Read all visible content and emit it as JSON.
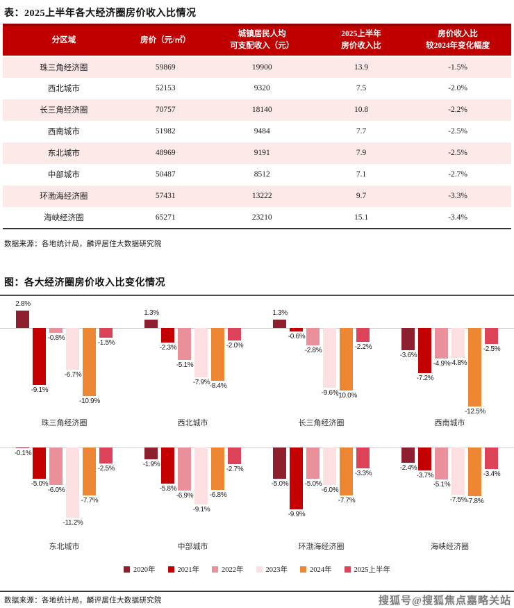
{
  "meta": {
    "table_title": "表：2025上半年各大经济圈房价收入比情况",
    "chart_title": "图：各大经济圈房价收入比变化情况",
    "source_table": "数据来源：各地统计局，麟评居住大数据研究院",
    "source_chart": "数据来源：各地统计局，麟评居住大数据研究院",
    "watermark": "搜狐号@搜狐焦点嘉略关站",
    "accent_red": "#C00000",
    "alt_row_pink": "#FCE9E8"
  },
  "table": {
    "headers": [
      {
        "line1": "分区域",
        "line2": ""
      },
      {
        "line1": "房价（元/㎡）",
        "line2": ""
      },
      {
        "line1": "城镇居民人均",
        "line2": "可支配收入（元）"
      },
      {
        "line1": "2025上半年",
        "line2": "房价收入比"
      },
      {
        "line1": "房价收入比",
        "line2": "较2024年变化幅度"
      }
    ],
    "rows": [
      {
        "region": "珠三角经济圈",
        "price": "59869",
        "income": "19900",
        "ratio": "13.9",
        "change": "-1.5%"
      },
      {
        "region": "西北城市",
        "price": "52153",
        "income": "9320",
        "ratio": "7.5",
        "change": "-2.0%"
      },
      {
        "region": "长三角经济圈",
        "price": "70757",
        "income": "18140",
        "ratio": "10.8",
        "change": "-2.2%"
      },
      {
        "region": "西南城市",
        "price": "51982",
        "income": "9484",
        "ratio": "7.7",
        "change": "-2.5%"
      },
      {
        "region": "东北城市",
        "price": "48969",
        "income": "9191",
        "ratio": "7.9",
        "change": "-2.5%"
      },
      {
        "region": "中部城市",
        "price": "50487",
        "income": "8512",
        "ratio": "7.1",
        "change": "-2.7%"
      },
      {
        "region": "环渤海经济圈",
        "price": "57431",
        "income": "13222",
        "ratio": "9.7",
        "change": "-3.3%"
      },
      {
        "region": "海峡经济圈",
        "price": "65271",
        "income": "23210",
        "ratio": "15.1",
        "change": "-3.4%"
      }
    ]
  },
  "chart_data": {
    "type": "bar",
    "title": "图：各大经济圈房价收入比变化情况",
    "layout": "small-multiples-2x4",
    "unit": "%",
    "grid": false,
    "value_labels": true,
    "legend_position": "bottom",
    "ylim": [
      -13,
      3
    ],
    "categories": [
      "珠三角经济圈",
      "西北城市",
      "长三角经济圈",
      "西南城市",
      "东北城市",
      "中部城市",
      "环渤海经济圈",
      "海峡经济圈"
    ],
    "series": [
      {
        "name": "2020年",
        "color": "#8E1F2E",
        "values": [
          2.8,
          1.3,
          1.3,
          -3.6,
          -0.1,
          -1.9,
          -5.0,
          -2.4
        ]
      },
      {
        "name": "2021年",
        "color": "#C40000",
        "values": [
          -9.1,
          -2.3,
          -0.6,
          -7.2,
          -5.0,
          -5.8,
          -9.9,
          -3.7
        ]
      },
      {
        "name": "2022年",
        "color": "#E9909B",
        "values": [
          -0.8,
          -5.1,
          -2.8,
          -4.9,
          -6.0,
          -6.9,
          -5.0,
          -5.1
        ]
      },
      {
        "name": "2023年",
        "color": "#FBDFE1",
        "values": [
          -6.7,
          -7.9,
          -9.6,
          -4.8,
          -11.2,
          -9.1,
          -6.0,
          -7.5
        ]
      },
      {
        "name": "2024年",
        "color": "#ED8733",
        "values": [
          -10.9,
          -8.4,
          -10.0,
          -12.5,
          -7.7,
          -6.8,
          -7.7,
          -7.8
        ]
      },
      {
        "name": "2025上半年",
        "color": "#DC4358",
        "values": [
          -1.5,
          -2.0,
          -2.2,
          -2.5,
          -2.5,
          -2.7,
          -3.3,
          -3.4
        ]
      }
    ]
  }
}
